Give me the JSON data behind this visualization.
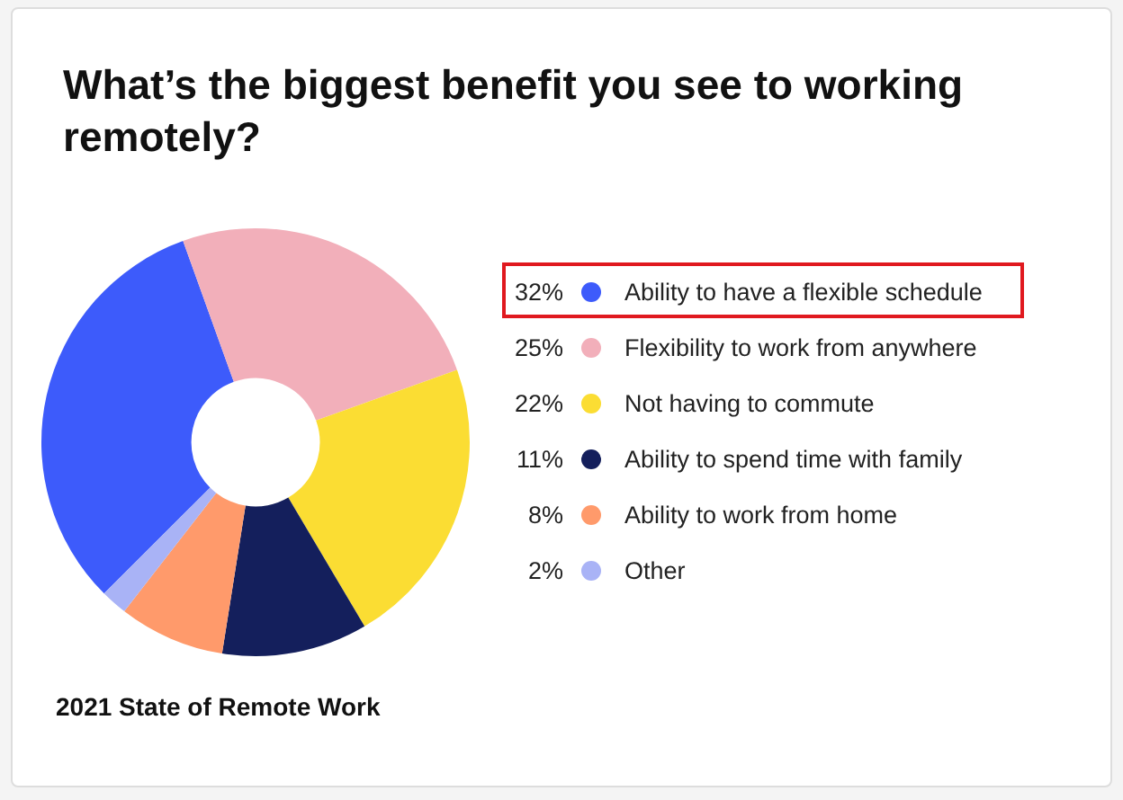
{
  "chart_data": {
    "type": "donut",
    "title": "What’s the biggest benefit you see to working remotely?",
    "categories": [
      "Ability to have a flexible schedule",
      "Flexibility to work from anywhere",
      "Not having to commute",
      "Ability to spend time with family",
      "Ability to work from home",
      "Other"
    ],
    "values": [
      32,
      25,
      22,
      11,
      8,
      2
    ],
    "value_labels": [
      "32%",
      "25%",
      "22%",
      "11%",
      "8%",
      "2%"
    ],
    "colors": [
      "#3d5bfb",
      "#f2afba",
      "#fbdd33",
      "#141f5c",
      "#ff9a6b",
      "#a9b3f6"
    ],
    "legend": "right",
    "annotations": [
      "2021 State of Remote Work"
    ]
  }
}
